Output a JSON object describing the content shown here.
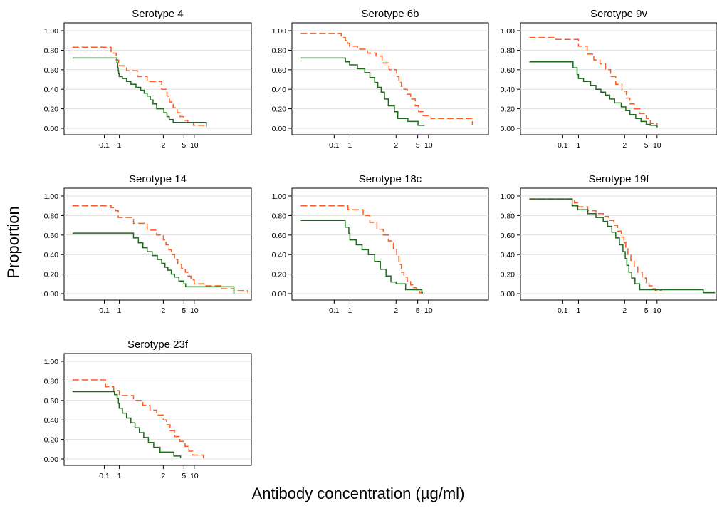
{
  "figure": {
    "ylabel": "Proportion",
    "xlabel": "Antibody concentration (µg/ml)"
  },
  "colors": {
    "series_dashed": "#ff5a1f",
    "series_solid": "#1e6b1e"
  },
  "chart_data": [
    {
      "type": "line",
      "step": true,
      "x_scale": "log",
      "title": "Serotype 4",
      "xticks": [
        "0.1",
        "1",
        "2",
        "5",
        "10"
      ],
      "yticks": [
        "0.00",
        "0.20",
        "0.40",
        "0.60",
        "0.80",
        "1.00"
      ],
      "ylim": [
        0,
        1
      ],
      "grid": true,
      "series": [
        {
          "style": "dashed",
          "x": [
            0.01,
            0.28,
            0.62,
            0.9,
            1.12,
            1.33,
            1.55,
            1.95,
            2.35,
            2.62,
            3.1,
            3.7,
            4.2,
            5.0,
            6.5,
            9.5,
            12.7
          ],
          "y": [
            0.83,
            0.77,
            0.7,
            0.64,
            0.59,
            0.53,
            0.48,
            0.4,
            0.33,
            0.27,
            0.21,
            0.16,
            0.12,
            0.08,
            0.06,
            0.03,
            0.01
          ]
        },
        {
          "style": "solid",
          "x": [
            0.01,
            0.7,
            0.78,
            0.85,
            0.9,
            0.97,
            1.05,
            1.12,
            1.2,
            1.3,
            1.4,
            1.48,
            1.55,
            1.63,
            1.7,
            1.8,
            2.05,
            2.35,
            2.6,
            3.1,
            5.0,
            12.7
          ],
          "y": [
            0.72,
            0.67,
            0.62,
            0.59,
            0.56,
            0.53,
            0.51,
            0.48,
            0.45,
            0.42,
            0.39,
            0.36,
            0.33,
            0.29,
            0.25,
            0.2,
            0.16,
            0.12,
            0.09,
            0.06,
            0.06,
            0.02
          ]
        }
      ]
    },
    {
      "type": "line",
      "step": true,
      "x_scale": "log",
      "title": "Serotype 6b",
      "xticks": [
        "0.1",
        "1",
        "2",
        "5",
        "10"
      ],
      "yticks": [
        "0.00",
        "0.20",
        "0.40",
        "0.60",
        "0.80",
        "1.00"
      ],
      "ylim": [
        0,
        1
      ],
      "grid": true,
      "series": [
        {
          "style": "dashed",
          "x": [
            0.01,
            0.28,
            0.52,
            0.73,
            0.95,
            1.12,
            1.3,
            1.48,
            1.62,
            1.8,
            2.05,
            2.25,
            2.5,
            2.8,
            3.2,
            3.7,
            4.5,
            5.3,
            7.0,
            10.5,
            14.0,
            23.0
          ],
          "y": [
            0.97,
            0.93,
            0.9,
            0.87,
            0.84,
            0.81,
            0.77,
            0.74,
            0.67,
            0.6,
            0.53,
            0.47,
            0.43,
            0.4,
            0.35,
            0.3,
            0.23,
            0.17,
            0.13,
            0.1,
            0.1,
            0.03
          ]
        },
        {
          "style": "solid",
          "x": [
            0.01,
            0.52,
            0.95,
            1.12,
            1.25,
            1.35,
            1.45,
            1.52,
            1.6,
            1.68,
            1.78,
            1.95,
            2.15,
            3.3,
            5.1,
            7.8
          ],
          "y": [
            0.72,
            0.68,
            0.65,
            0.61,
            0.57,
            0.52,
            0.47,
            0.42,
            0.37,
            0.3,
            0.23,
            0.17,
            0.1,
            0.07,
            0.03,
            0.03
          ]
        }
      ]
    },
    {
      "type": "line",
      "step": true,
      "x_scale": "log",
      "title": "Serotype 9v",
      "xticks": [
        "0.1",
        "1",
        "2",
        "5",
        "10"
      ],
      "yticks": [
        "0.00",
        "0.20",
        "0.40",
        "0.60",
        "0.80",
        "1.00"
      ],
      "ylim": [
        0,
        1
      ],
      "grid": true,
      "series": [
        {
          "style": "dashed",
          "x": [
            0.01,
            0.06,
            1.0,
            1.14,
            1.26,
            1.38,
            1.5,
            1.62,
            1.75,
            1.92,
            2.15,
            2.5,
            3.0,
            3.8,
            5.0,
            6.5,
            10.0
          ],
          "y": [
            0.93,
            0.91,
            0.84,
            0.76,
            0.7,
            0.66,
            0.6,
            0.53,
            0.45,
            0.38,
            0.31,
            0.25,
            0.2,
            0.15,
            0.1,
            0.05,
            0.01
          ]
        },
        {
          "style": "solid",
          "x": [
            0.01,
            0.45,
            0.82,
            1.0,
            1.08,
            1.2,
            1.3,
            1.4,
            1.5,
            1.6,
            1.72,
            1.9,
            2.1,
            2.5,
            3.2,
            4.0,
            5.0,
            6.5,
            10.0
          ],
          "y": [
            0.68,
            0.62,
            0.55,
            0.51,
            0.48,
            0.44,
            0.4,
            0.37,
            0.34,
            0.3,
            0.26,
            0.22,
            0.18,
            0.14,
            0.1,
            0.07,
            0.04,
            0.03,
            0.01
          ]
        }
      ]
    },
    {
      "type": "line",
      "step": true,
      "x_scale": "log",
      "title": "Serotype 14",
      "xticks": [
        "0.1",
        "1",
        "2",
        "5",
        "10"
      ],
      "yticks": [
        "0.00",
        "0.20",
        "0.40",
        "0.60",
        "0.80",
        "1.00"
      ],
      "ylim": [
        0,
        1
      ],
      "grid": true,
      "series": [
        {
          "style": "dashed",
          "x": [
            0.01,
            0.28,
            0.55,
            0.85,
            1.25,
            1.55,
            1.8,
            2.0,
            2.25,
            2.55,
            2.85,
            3.3,
            3.8,
            4.5,
            5.5,
            6.5,
            8.0,
            10.0,
            12.5,
            17.0,
            22.0,
            29.0
          ],
          "y": [
            0.9,
            0.88,
            0.85,
            0.78,
            0.72,
            0.65,
            0.6,
            0.55,
            0.5,
            0.45,
            0.4,
            0.35,
            0.3,
            0.26,
            0.22,
            0.18,
            0.14,
            0.1,
            0.08,
            0.05,
            0.03,
            0.01
          ]
        },
        {
          "style": "solid",
          "x": [
            0.01,
            1.25,
            1.35,
            1.45,
            1.55,
            1.68,
            1.82,
            1.95,
            2.15,
            2.45,
            2.85,
            3.3,
            4.0,
            5.0,
            5.6,
            8.5,
            20.0,
            22.0
          ],
          "y": [
            0.62,
            0.57,
            0.52,
            0.47,
            0.43,
            0.39,
            0.35,
            0.31,
            0.27,
            0.24,
            0.2,
            0.17,
            0.13,
            0.1,
            0.07,
            0.07,
            0.07,
            0.0
          ]
        }
      ]
    },
    {
      "type": "line",
      "step": true,
      "x_scale": "log",
      "title": "Serotype 18c",
      "xticks": [
        "0.1",
        "1",
        "2",
        "5",
        "10"
      ],
      "yticks": [
        "0.00",
        "0.20",
        "0.40",
        "0.60",
        "0.80",
        "1.00"
      ],
      "ylim": [
        0,
        1
      ],
      "grid": true,
      "series": [
        {
          "style": "dashed",
          "x": [
            0.01,
            0.75,
            1.22,
            1.35,
            1.5,
            1.65,
            1.78,
            1.92,
            2.05,
            2.25,
            2.5,
            2.8,
            3.2,
            3.7,
            4.2,
            4.8,
            5.6,
            7.0
          ],
          "y": [
            0.9,
            0.86,
            0.8,
            0.73,
            0.66,
            0.6,
            0.54,
            0.46,
            0.38,
            0.3,
            0.22,
            0.17,
            0.13,
            0.09,
            0.06,
            0.04,
            0.01,
            0.01
          ]
        },
        {
          "style": "solid",
          "x": [
            0.01,
            0.5,
            0.85,
            1.0,
            1.1,
            1.2,
            1.32,
            1.45,
            1.58,
            1.72,
            1.85,
            2.0,
            2.4,
            3.0,
            4.5,
            6.5,
            7.0
          ],
          "y": [
            0.75,
            0.68,
            0.62,
            0.55,
            0.5,
            0.45,
            0.4,
            0.33,
            0.25,
            0.18,
            0.12,
            0.1,
            0.1,
            0.04,
            0.04,
            0.01,
            0.01
          ]
        }
      ]
    },
    {
      "type": "line",
      "step": true,
      "x_scale": "log",
      "title": "Serotype 19f",
      "xticks": [
        "0.1",
        "1",
        "2",
        "5",
        "10"
      ],
      "yticks": [
        "0.00",
        "0.20",
        "0.40",
        "0.60",
        "0.80",
        "1.00"
      ],
      "ylim": [
        0,
        1
      ],
      "grid": true,
      "series": [
        {
          "style": "dashed",
          "x": [
            0.01,
            0.55,
            0.95,
            1.15,
            1.3,
            1.45,
            1.58,
            1.7,
            1.8,
            1.9,
            1.98,
            2.1,
            2.3,
            2.6,
            3.0,
            3.5,
            4.2,
            5.0,
            6.0,
            7.5,
            9.0,
            11.0
          ],
          "y": [
            0.97,
            0.93,
            0.89,
            0.85,
            0.82,
            0.79,
            0.75,
            0.7,
            0.64,
            0.58,
            0.52,
            0.46,
            0.4,
            0.34,
            0.28,
            0.22,
            0.16,
            0.11,
            0.08,
            0.05,
            0.03,
            0.03
          ]
        },
        {
          "style": "solid",
          "x": [
            0.01,
            0.4,
            0.9,
            1.15,
            1.3,
            1.45,
            1.55,
            1.65,
            1.75,
            1.85,
            1.95,
            2.05,
            2.2,
            2.4,
            2.7,
            3.1,
            3.8,
            24.0,
            30.0
          ],
          "y": [
            0.97,
            0.9,
            0.86,
            0.82,
            0.78,
            0.74,
            0.69,
            0.63,
            0.57,
            0.5,
            0.43,
            0.36,
            0.29,
            0.22,
            0.16,
            0.1,
            0.04,
            0.01,
            0.01
          ]
        }
      ]
    },
    {
      "type": "line",
      "step": true,
      "x_scale": "log",
      "title": "Serotype 23f",
      "xticks": [
        "0.1",
        "1",
        "2",
        "5",
        "10"
      ],
      "yticks": [
        "0.00",
        "0.20",
        "0.40",
        "0.60",
        "0.80",
        "1.00"
      ],
      "ylim": [
        0,
        1
      ],
      "grid": true,
      "series": [
        {
          "style": "dashed",
          "x": [
            0.01,
            0.12,
            0.42,
            1.0,
            1.25,
            1.45,
            1.62,
            1.8,
            2.0,
            2.3,
            2.7,
            3.3,
            4.2,
            5.4,
            7.0,
            9.0,
            12.0
          ],
          "y": [
            0.81,
            0.74,
            0.7,
            0.65,
            0.6,
            0.55,
            0.5,
            0.45,
            0.4,
            0.35,
            0.29,
            0.23,
            0.18,
            0.13,
            0.08,
            0.04,
            0.01
          ]
        },
        {
          "style": "solid",
          "x": [
            0.01,
            0.47,
            0.72,
            0.87,
            0.97,
            1.05,
            1.12,
            1.2,
            1.28,
            1.37,
            1.47,
            1.58,
            1.72,
            1.9,
            2.1,
            3.2,
            4.3
          ],
          "y": [
            0.69,
            0.66,
            0.62,
            0.57,
            0.52,
            0.47,
            0.42,
            0.37,
            0.32,
            0.27,
            0.22,
            0.17,
            0.12,
            0.07,
            0.07,
            0.03,
            0.01
          ]
        }
      ]
    }
  ]
}
